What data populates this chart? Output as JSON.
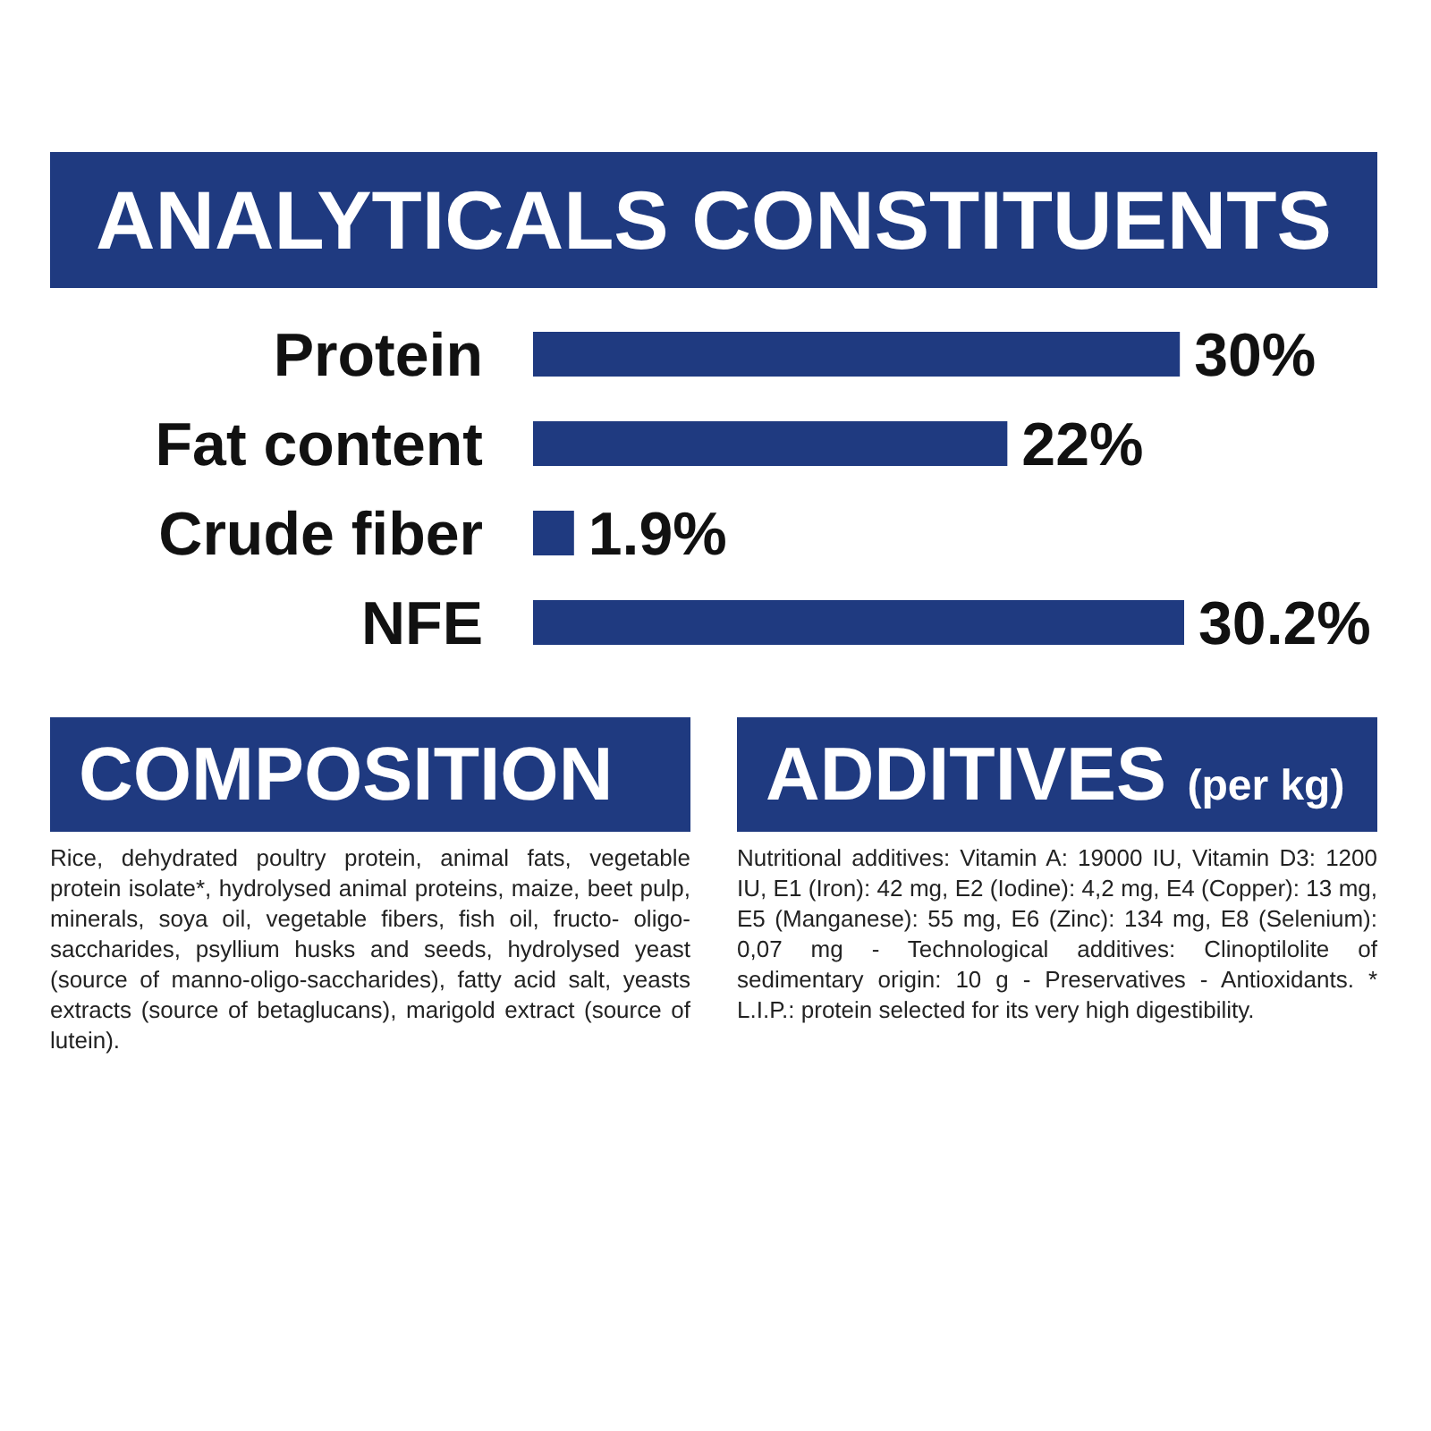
{
  "chart_data": {
    "type": "bar",
    "orientation": "horizontal",
    "title": "ANALYTICALS CONSTITUENTS",
    "categories": [
      "Protein",
      "Fat content",
      "Crude fiber",
      "NFE"
    ],
    "values": [
      30,
      22,
      1.9,
      30.2
    ],
    "value_labels": [
      "30%",
      "22%",
      "1.9%",
      "30.2%"
    ],
    "color": "#1f3a80",
    "tick_labels": "y",
    "annotations": [
      "COMPOSITION",
      "Rice, dehydrated poultry protein, animal fats, vegetable protein isolate*, hydrolysed animal proteins, maize, beet pulp, minerals, soya oil, vegetable fibers, fish oil, fructo- oligo-saccharides, psyllium husks and seeds, hydrolysed yeast (source of manno-oligo-saccharides), fatty acid salt, yeasts extracts (source of betaglucans), marigold extract (source of lutein).",
      "ADDITIVES (per kg)",
      "Nutritional additives: Vitamin A: 19000 IU, Vitamin D3: 1200 IU, E1 (Iron): 42 mg, E2 (Iodine): 4,2 mg, E4 (Copper): 13 mg, E5 (Manganese): 55 mg, E6 (Zinc): 134 mg, E8 (Selenium): 0,07 mg - Technological additives: Clinoptilolite of sedimentary origin: 10 g - Preservatives - Antioxidants. * L.I.P.: protein selected for its very high digestibility."
    ]
  }
}
